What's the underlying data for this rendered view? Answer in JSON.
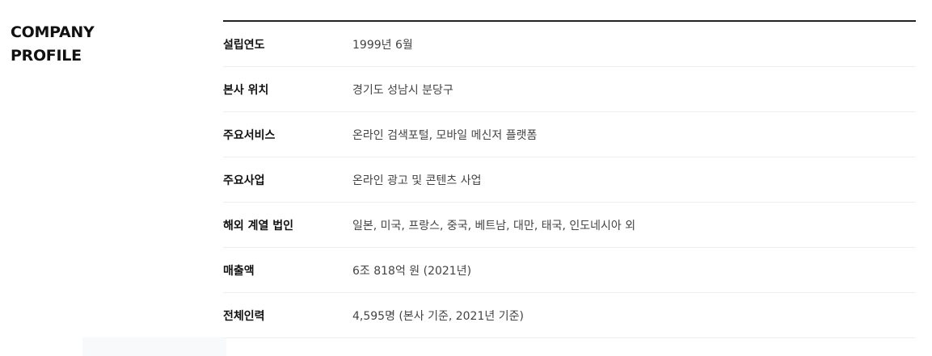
{
  "section": {
    "title_line1": "COMPANY",
    "title_line2": "PROFILE"
  },
  "profile": {
    "rows": [
      {
        "label": "설립연도",
        "value": "1999년 6월"
      },
      {
        "label": "본사 위치",
        "value": "경기도 성남시 분당구"
      },
      {
        "label": "주요서비스",
        "value": "온라인 검색포털, 모바일 메신저 플랫폼"
      },
      {
        "label": "주요사업",
        "value": "온라인 광고 및 콘텐츠 사업"
      },
      {
        "label": "해외 계열 법인",
        "value": "일본, 미국, 프랑스, 중국, 베트남, 대만, 태국, 인도네시아 외"
      },
      {
        "label": "매출액",
        "value": "6조 818억 원 (2021년)"
      },
      {
        "label": "전체인력",
        "value": "4,595명 (본사 기준, 2021년 기준)"
      }
    ]
  }
}
